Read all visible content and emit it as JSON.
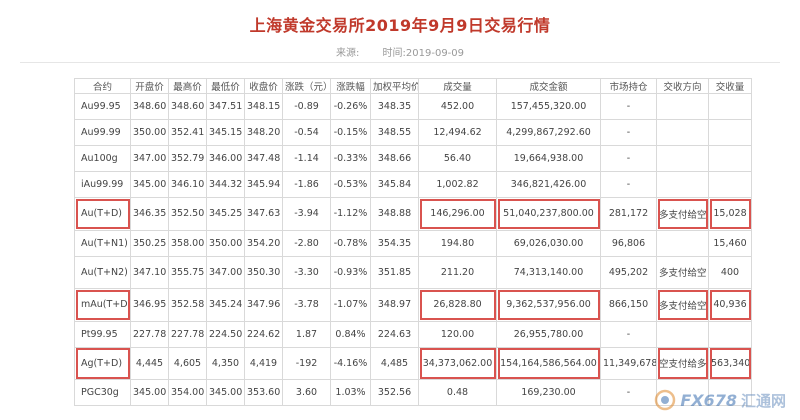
{
  "page": {
    "title": "上海黄金交易所2019年9月9日交易行情",
    "source_label": "来源:",
    "time_label": "时间:2019-09-09"
  },
  "table": {
    "headers": [
      "合约",
      "开盘价",
      "最高价",
      "最低价",
      "收盘价",
      "涨跌（元）",
      "涨跌幅",
      "加权平均价",
      "成交量",
      "成交金额",
      "市场持仓",
      "交收方向",
      "交收量"
    ],
    "rows": [
      [
        "Au99.95",
        "348.60",
        "348.60",
        "347.51",
        "348.15",
        "-0.89",
        "-0.26%",
        "348.35",
        "452.00",
        "157,455,320.00",
        "-",
        "",
        ""
      ],
      [
        "Au99.99",
        "350.00",
        "352.41",
        "345.15",
        "348.20",
        "-0.54",
        "-0.15%",
        "348.55",
        "12,494.62",
        "4,299,867,292.60",
        "-",
        "",
        ""
      ],
      [
        "Au100g",
        "347.00",
        "352.79",
        "346.00",
        "347.48",
        "-1.14",
        "-0.33%",
        "348.66",
        "56.40",
        "19,664,938.00",
        "-",
        "",
        ""
      ],
      [
        "iAu99.99",
        "345.00",
        "346.10",
        "344.32",
        "345.94",
        "-1.86",
        "-0.53%",
        "345.84",
        "1,002.82",
        "346,821,426.00",
        "-",
        "",
        ""
      ],
      [
        "Au(T+D)",
        "346.35",
        "352.50",
        "345.25",
        "347.63",
        "-3.94",
        "-1.12%",
        "348.88",
        "146,296.00",
        "51,040,237,800.00",
        "281,172",
        "多支付给空",
        "15,028"
      ],
      [
        "Au(T+N1)",
        "350.25",
        "358.00",
        "350.00",
        "354.20",
        "-2.80",
        "-0.78%",
        "354.35",
        "194.80",
        "69,026,030.00",
        "96,806",
        "",
        "15,460"
      ],
      [
        "Au(T+N2)",
        "347.10",
        "355.75",
        "347.00",
        "350.30",
        "-3.30",
        "-0.93%",
        "351.85",
        "211.20",
        "74,313,140.00",
        "495,202",
        "多支付给空",
        "400"
      ],
      [
        "mAu(T+D)",
        "346.95",
        "352.58",
        "345.24",
        "347.96",
        "-3.78",
        "-1.07%",
        "348.97",
        "26,828.80",
        "9,362,537,956.00",
        "866,150",
        "多支付给空",
        "40,936"
      ],
      [
        "Pt99.95",
        "227.78",
        "227.78",
        "224.50",
        "224.62",
        "1.87",
        "0.84%",
        "224.63",
        "120.00",
        "26,955,780.00",
        "-",
        "",
        ""
      ],
      [
        "Ag(T+D)",
        "4,445",
        "4,605",
        "4,350",
        "4,419",
        "-192",
        "-4.16%",
        "4,485",
        "34,373,062.00",
        "154,164,586,564.00",
        "11,349,678",
        "空支付给多",
        "563,340"
      ],
      [
        "PGC30g",
        "345.00",
        "354.00",
        "345.00",
        "353.60",
        "3.60",
        "1.03%",
        "352.56",
        "0.48",
        "169,230.00",
        "-",
        "",
        ""
      ]
    ]
  },
  "watermark": {
    "text1": "FX678",
    "text2": "汇通网"
  },
  "colors": {
    "title": "#c0392b",
    "highlight": "#d9534f",
    "border": "#d9d9d9"
  }
}
